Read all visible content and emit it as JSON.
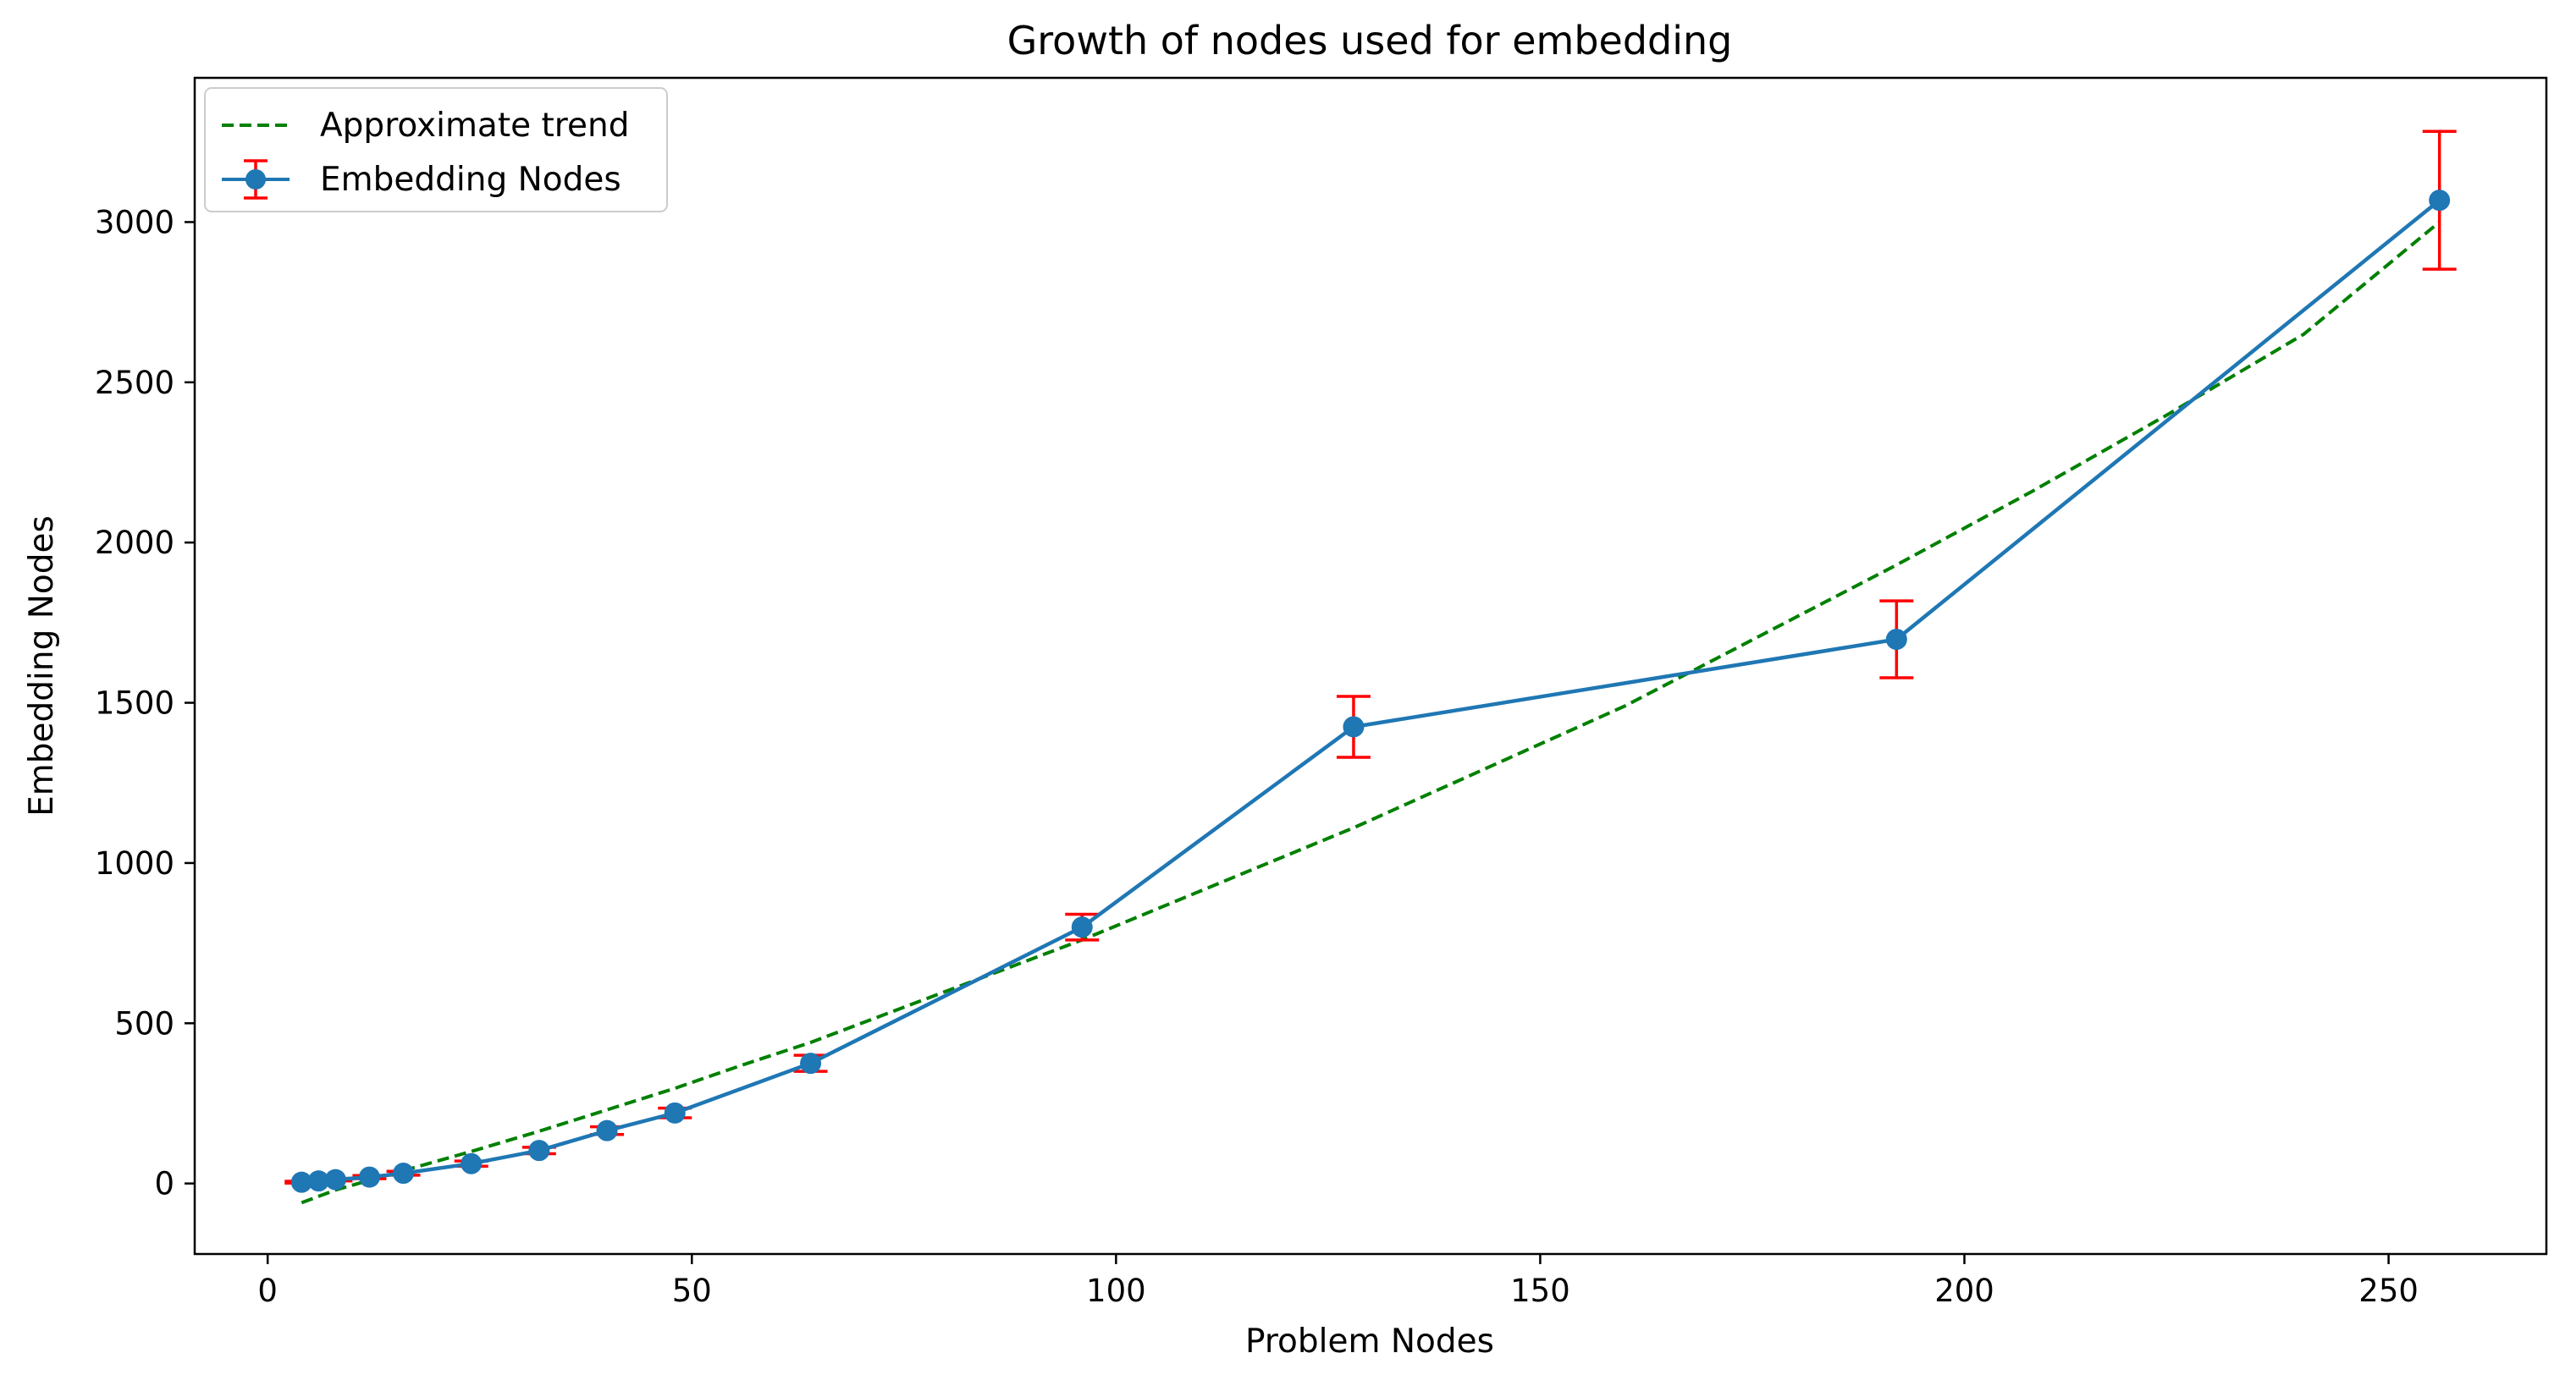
{
  "chart_data": {
    "type": "line",
    "title": "Growth of nodes used for embedding",
    "xlabel": "Problem Nodes",
    "ylabel": "Embedding Nodes",
    "xlim": [
      -8.6,
      268.6
    ],
    "ylim": [
      -220,
      3450
    ],
    "xticks": [
      0,
      50,
      100,
      150,
      200,
      250
    ],
    "yticks": [
      0,
      500,
      1000,
      1500,
      2000,
      2500,
      3000
    ],
    "grid": false,
    "legend_position": "top-left",
    "series": [
      {
        "name": "Approximate trend",
        "style": "dashed",
        "color": "#008000",
        "x": [
          4,
          8,
          16,
          24,
          32,
          40,
          48,
          56,
          64,
          72,
          80,
          88,
          96,
          112,
          128,
          144,
          160,
          176,
          192,
          208,
          224,
          240,
          256
        ],
        "y": [
          -60,
          -20,
          40,
          100,
          163,
          230,
          297,
          370,
          440,
          520,
          600,
          680,
          760,
          935,
          1110,
          1300,
          1490,
          1710,
          1930,
          2160,
          2400,
          2650,
          3000
        ]
      },
      {
        "name": "Embedding Nodes",
        "style": "solid-with-markers",
        "color": "#1f77b4",
        "errorbar_color": "#ff0000",
        "x": [
          4,
          6,
          8,
          12,
          16,
          24,
          32,
          40,
          48,
          64,
          96,
          128,
          192,
          256
        ],
        "y": [
          4,
          8,
          12,
          20,
          32,
          62,
          103,
          165,
          220,
          375,
          800,
          1425,
          1698,
          3068
        ],
        "yerr": [
          3,
          3,
          4,
          5,
          6,
          8,
          10,
          12,
          15,
          25,
          40,
          95,
          120,
          215
        ]
      }
    ]
  }
}
